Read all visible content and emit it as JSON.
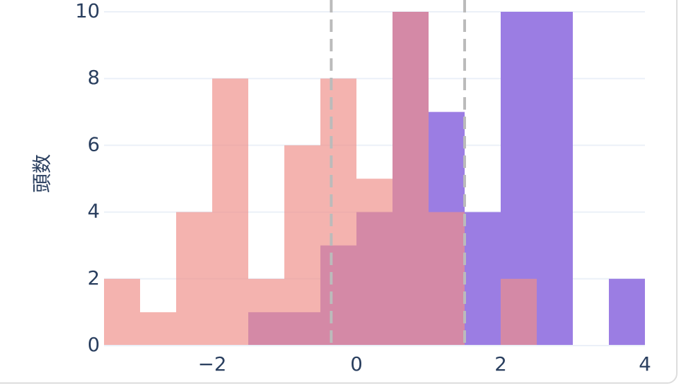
{
  "chart_data": {
    "type": "histogram",
    "y_label": "頭数",
    "bins": [
      -3.5,
      -3,
      -2.5,
      -2,
      -1.5,
      -1,
      -0.5,
      0,
      0.5,
      1,
      1.5,
      2,
      2.5,
      3,
      3.5,
      4
    ],
    "series": [
      {
        "color": "#9b7de3",
        "values": [
          0,
          0,
          0,
          0,
          1,
          1,
          3,
          4,
          10,
          7,
          4,
          10,
          10,
          0,
          2
        ]
      },
      {
        "color": "#ef8f89",
        "values": [
          2,
          1,
          4,
          8,
          2,
          6,
          8,
          5,
          10,
          4,
          0,
          2,
          0,
          0,
          0
        ]
      }
    ],
    "vlines": [
      -0.35,
      1.5
    ],
    "xlim": [
      -3.5,
      4
    ],
    "xticks": [
      {
        "value": -2,
        "label": "−2"
      },
      0,
      2,
      4
    ],
    "ylim": [
      0,
      10
    ],
    "yticks": [
      0,
      2,
      4,
      6,
      8,
      10
    ],
    "grid": true
  }
}
